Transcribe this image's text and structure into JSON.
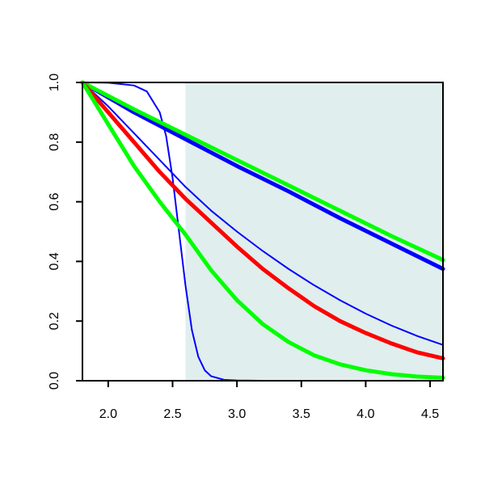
{
  "chart_data": {
    "type": "line",
    "title": "",
    "xlabel": "",
    "ylabel": "",
    "xlim": [
      1.8,
      4.6
    ],
    "ylim": [
      0.0,
      1.0
    ],
    "x_ticks": [
      2.0,
      2.5,
      3.0,
      3.5,
      4.0,
      4.5
    ],
    "x_tick_labels": [
      "2.0",
      "2.5",
      "3.0",
      "3.5",
      "4.0",
      "4.5"
    ],
    "y_ticks": [
      0.0,
      0.2,
      0.4,
      0.6,
      0.8,
      1.0
    ],
    "y_tick_labels": [
      "0.0",
      "0.2",
      "0.4",
      "0.6",
      "0.8",
      "1.0"
    ],
    "grid": false,
    "legend": "none",
    "shaded_region": {
      "x_from": 2.6,
      "x_to": 4.6,
      "color": "#e0eeee"
    },
    "series": [
      {
        "color": "#0000ff",
        "line": "thin",
        "x": [
          1.8,
          2.0,
          2.2,
          2.3,
          2.4,
          2.45,
          2.5,
          2.55,
          2.6,
          2.65,
          2.7,
          2.75,
          2.8,
          2.9,
          3.0,
          3.2,
          4.6
        ],
        "y": [
          1.0,
          0.999,
          0.99,
          0.97,
          0.9,
          0.82,
          0.68,
          0.5,
          0.32,
          0.17,
          0.08,
          0.035,
          0.015,
          0.003,
          0.001,
          0.0,
          0.0
        ]
      },
      {
        "color": "#0000ff",
        "line": "thin",
        "x": [
          1.8,
          2.0,
          2.2,
          2.4,
          2.6,
          2.8,
          3.0,
          3.2,
          3.4,
          3.6,
          3.8,
          4.0,
          4.2,
          4.4,
          4.6
        ],
        "y": [
          1.0,
          0.92,
          0.83,
          0.74,
          0.65,
          0.57,
          0.5,
          0.435,
          0.375,
          0.32,
          0.27,
          0.225,
          0.185,
          0.15,
          0.12
        ]
      },
      {
        "color": "#0000ff",
        "line": "thick",
        "x": [
          1.8,
          2.2,
          2.6,
          3.0,
          3.4,
          3.8,
          4.2,
          4.6
        ],
        "y": [
          1.0,
          0.9,
          0.81,
          0.72,
          0.635,
          0.545,
          0.46,
          0.375
        ]
      },
      {
        "color": "#00ff00",
        "line": "thick",
        "x": [
          1.8,
          2.2,
          2.6,
          3.0,
          3.4,
          3.8,
          4.2,
          4.6
        ],
        "y": [
          1.0,
          0.91,
          0.825,
          0.74,
          0.655,
          0.57,
          0.485,
          0.405
        ]
      },
      {
        "color": "#ff0000",
        "line": "thick",
        "x": [
          1.8,
          2.0,
          2.2,
          2.4,
          2.6,
          2.8,
          3.0,
          3.2,
          3.4,
          3.6,
          3.8,
          4.0,
          4.2,
          4.4,
          4.6
        ],
        "y": [
          1.0,
          0.9,
          0.8,
          0.7,
          0.61,
          0.53,
          0.45,
          0.375,
          0.31,
          0.25,
          0.2,
          0.16,
          0.125,
          0.095,
          0.075
        ]
      },
      {
        "color": "#00ff00",
        "line": "thick",
        "x": [
          1.8,
          2.0,
          2.2,
          2.4,
          2.6,
          2.8,
          3.0,
          3.2,
          3.4,
          3.6,
          3.8,
          4.0,
          4.2,
          4.4,
          4.6
        ],
        "y": [
          1.0,
          0.86,
          0.72,
          0.6,
          0.49,
          0.37,
          0.27,
          0.19,
          0.13,
          0.085,
          0.055,
          0.035,
          0.022,
          0.014,
          0.01
        ]
      }
    ]
  }
}
